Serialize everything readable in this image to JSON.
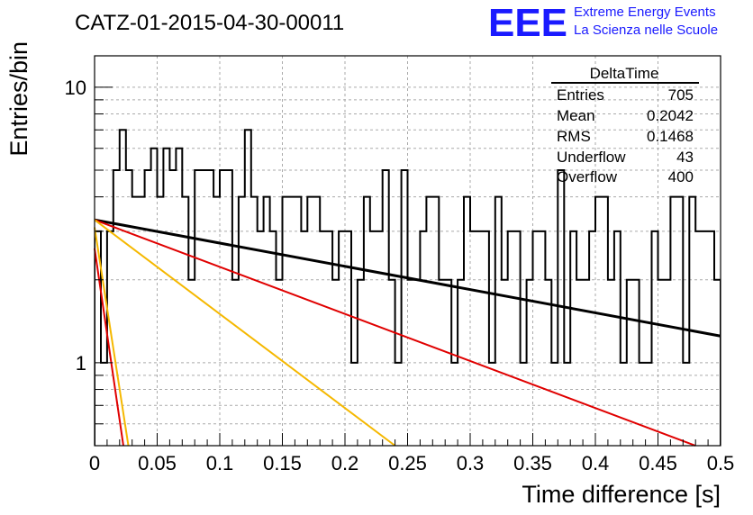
{
  "title": "CATZ-01-2015-04-30-00011",
  "logo": {
    "letters": "EEE",
    "line1": "Extreme Energy Events",
    "line2": "La Scienza nelle Scuole",
    "color": "#1a1aff"
  },
  "stats_box": {
    "title": "DeltaTime",
    "rows": [
      {
        "label": "Entries",
        "value": "705"
      },
      {
        "label": "Mean",
        "value": "0.2042"
      },
      {
        "label": "RMS",
        "value": "0.1468"
      },
      {
        "label": "Underflow",
        "value": "43"
      },
      {
        "label": "Overflow",
        "value": "400"
      }
    ]
  },
  "chart_data": {
    "type": "line",
    "xlabel": "Time difference [s]",
    "ylabel": "Entries/bin",
    "xlim": [
      0,
      0.5
    ],
    "ylim": [
      0.5,
      13
    ],
    "y_scale": "log",
    "grid": true,
    "x_ticks": [
      "0",
      "0.05",
      "0.1",
      "0.15",
      "0.2",
      "0.25",
      "0.3",
      "0.35",
      "0.4",
      "0.45",
      "0.5"
    ],
    "y_ticks": [
      "1",
      "10"
    ],
    "histogram": {
      "name": "DeltaTime",
      "color": "#000000",
      "bin_width": 0.005,
      "values": [
        3,
        1,
        3,
        5,
        7,
        5,
        4,
        4,
        5,
        6,
        4,
        6,
        5,
        6,
        4,
        2,
        5,
        5,
        5,
        4,
        5,
        5,
        2,
        4,
        7,
        4,
        3,
        4,
        3,
        2,
        4,
        4,
        4,
        3,
        4,
        4,
        3,
        3,
        2,
        3,
        3,
        1,
        2,
        4,
        3,
        3,
        5,
        2,
        1,
        5,
        2,
        2,
        3,
        4,
        4,
        2,
        2,
        1,
        2,
        4,
        3,
        3,
        3,
        1,
        4,
        2,
        3,
        3,
        1,
        2,
        3,
        3,
        2,
        1,
        5,
        1,
        3,
        2,
        2,
        3,
        4,
        4,
        2,
        3,
        1,
        2,
        2,
        1,
        1,
        3,
        2,
        2,
        4,
        4,
        1,
        4,
        3,
        3,
        3,
        2
      ]
    },
    "fits": [
      {
        "color": "#000000",
        "x": [
          0,
          0.5
        ],
        "y": [
          3.3,
          1.25
        ]
      },
      {
        "color": "#e00000",
        "x": [
          0,
          0.48
        ],
        "y": [
          3.3,
          0.5
        ]
      },
      {
        "color": "#f5b800",
        "x": [
          0,
          0.24
        ],
        "y": [
          3.3,
          0.5
        ]
      },
      {
        "color": "#f5b800",
        "x": [
          0,
          0.027
        ],
        "y": [
          3.1,
          0.5
        ]
      },
      {
        "color": "#e00000",
        "x": [
          0,
          0.023
        ],
        "y": [
          2.6,
          0.5
        ]
      }
    ]
  }
}
